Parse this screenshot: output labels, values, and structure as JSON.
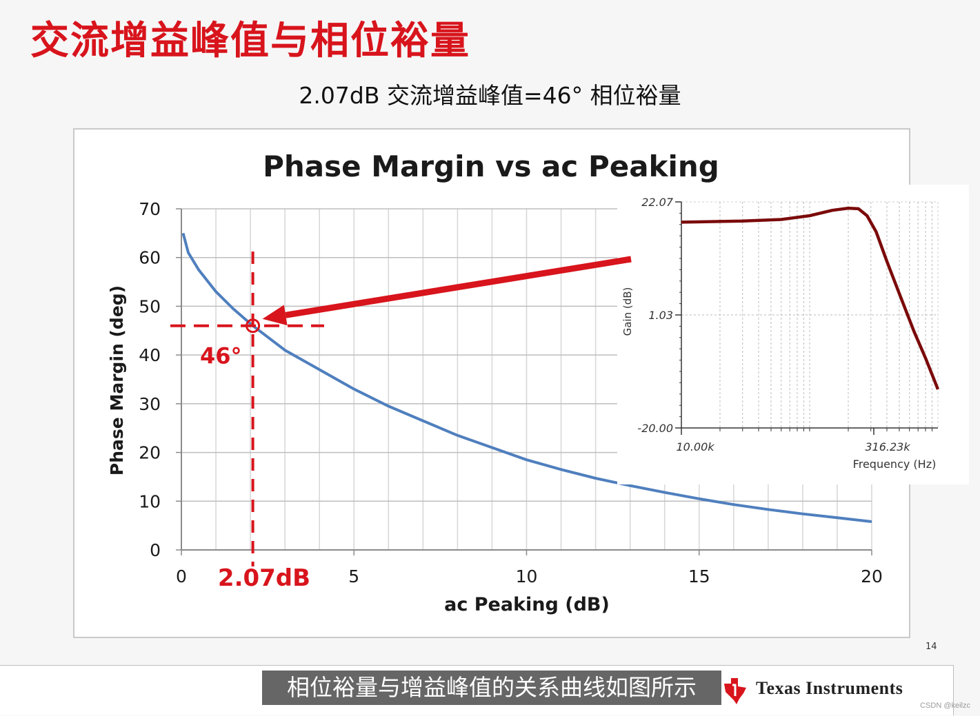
{
  "slide": {
    "title": "交流增益峰值与相位裕量",
    "subtitle": "2.07dB 交流增益峰值=46° 相位裕量",
    "page_number": "14",
    "caption": "相位裕量与增益峰值的关系曲线如图所示",
    "logo_text": "Texas Instruments",
    "watermark": "CSDN @keilzc"
  },
  "colors": {
    "title": "#d8141c",
    "curve": "#4f7fbe",
    "annotation": "#d8141c",
    "inset_curve": "#7b0a0a"
  },
  "chart_data": [
    {
      "type": "line",
      "title": "Phase Margin vs ac Peaking",
      "xlabel": "ac Peaking (dB)",
      "ylabel": "Phase Margin (deg)",
      "xlim": [
        0,
        20
      ],
      "ylim": [
        0,
        70
      ],
      "xticks": [
        0,
        5,
        10,
        15,
        20
      ],
      "yticks": [
        0,
        10,
        20,
        30,
        40,
        50,
        60,
        70
      ],
      "grid": true,
      "series": [
        {
          "x": [
            0.05,
            0.2,
            0.5,
            1,
            1.5,
            2.07,
            3,
            4,
            5,
            6,
            7,
            8,
            9,
            10,
            11,
            12,
            13,
            14,
            15,
            16,
            17,
            18,
            19,
            20
          ],
          "y": [
            65,
            61,
            57.5,
            53,
            49.5,
            46,
            41,
            37,
            33,
            29.5,
            26.5,
            23.5,
            21,
            18.5,
            16.5,
            14.7,
            13.2,
            11.8,
            10.5,
            9.3,
            8.3,
            7.4,
            6.6,
            5.8
          ]
        }
      ],
      "annotations": {
        "marker": {
          "x": 2.07,
          "y": 46
        },
        "x_label": "2.07dB",
        "y_label": "46°"
      }
    },
    {
      "type": "line",
      "xlabel": "Frequency (Hz)",
      "ylabel": "Gain (dB)",
      "x_scale": "log",
      "xlim": [
        10000,
        1000000
      ],
      "ylim": [
        -20.0,
        22.07
      ],
      "y_tick_labels": [
        "22.07",
        "1.03",
        "-20.00"
      ],
      "y_tick_values": [
        22.07,
        1.03,
        -20.0
      ],
      "x_tick_labels": [
        "10.00k",
        "316.23k"
      ],
      "x_tick_values": [
        10000,
        316230
      ],
      "series": [
        {
          "x": [
            10000,
            30000,
            60000,
            100000,
            150000,
            200000,
            240000,
            280000,
            330000,
            400000,
            500000,
            650000,
            800000,
            1000000
          ],
          "y": [
            18.3,
            18.5,
            18.8,
            19.5,
            20.5,
            20.9,
            20.8,
            19.5,
            16.5,
            11,
            5,
            -2,
            -7,
            -12.8
          ]
        }
      ]
    }
  ]
}
